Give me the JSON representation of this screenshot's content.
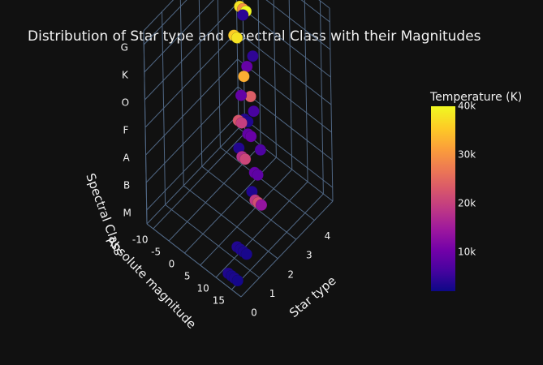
{
  "chart_data": {
    "type": "scatter3d",
    "title": "Distribution of Star type and Spectral Class with their Magnitudes",
    "axes": {
      "x": {
        "label": "Star type",
        "ticks": [
          "0",
          "1",
          "2",
          "3",
          "4"
        ],
        "range": [
          0,
          5
        ]
      },
      "y": {
        "label": "Absolute magnitude",
        "ticks": [
          "-10",
          "-5",
          "0",
          "5",
          "10",
          "15"
        ],
        "range": [
          -12,
          18
        ]
      },
      "z": {
        "label": "Spectral Class",
        "ticks": [
          "M",
          "B",
          "A",
          "F",
          "O",
          "K",
          "G"
        ]
      }
    },
    "colorbar": {
      "title": "Temperature (K)",
      "ticks": [
        "10k",
        "20k",
        "30k",
        "40k"
      ],
      "tick_values": [
        10000,
        20000,
        30000,
        40000
      ],
      "range": [
        2000,
        40000
      ],
      "colors": [
        "#0d0887",
        "#46039f",
        "#7201a8",
        "#9c179e",
        "#bd3786",
        "#d8576b",
        "#ed7953",
        "#fb9f3a",
        "#fdca26",
        "#f0f921"
      ]
    },
    "points": [
      {
        "star_type": 0,
        "abs_mag": 16,
        "spectral_class": "M",
        "temperature": 3000
      },
      {
        "star_type": 0,
        "abs_mag": 15,
        "spectral_class": "M",
        "temperature": 2800
      },
      {
        "star_type": 0,
        "abs_mag": 14,
        "spectral_class": "M",
        "temperature": 3300
      },
      {
        "star_type": 0,
        "abs_mag": 17,
        "spectral_class": "M",
        "temperature": 2600
      },
      {
        "star_type": 1,
        "abs_mag": 12,
        "spectral_class": "M",
        "temperature": 3200
      },
      {
        "star_type": 1,
        "abs_mag": 11,
        "spectral_class": "M",
        "temperature": 3500
      },
      {
        "star_type": 1,
        "abs_mag": 13,
        "spectral_class": "M",
        "temperature": 3100
      },
      {
        "star_type": 1,
        "abs_mag": 14,
        "spectral_class": "M",
        "temperature": 2900
      },
      {
        "star_type": 2,
        "abs_mag": 12,
        "spectral_class": "B",
        "temperature": 22000
      },
      {
        "star_type": 2,
        "abs_mag": 11,
        "spectral_class": "B",
        "temperature": 19000
      },
      {
        "star_type": 2,
        "abs_mag": 13,
        "spectral_class": "B",
        "temperature": 14000
      },
      {
        "star_type": 2,
        "abs_mag": 11,
        "spectral_class": "A",
        "temperature": 9000
      },
      {
        "star_type": 2,
        "abs_mag": 12,
        "spectral_class": "A",
        "temperature": 8500
      },
      {
        "star_type": 2,
        "abs_mag": 13,
        "spectral_class": "F",
        "temperature": 7000
      },
      {
        "star_type": 3,
        "abs_mag": 2,
        "spectral_class": "B",
        "temperature": 21000
      },
      {
        "star_type": 3,
        "abs_mag": 1,
        "spectral_class": "B",
        "temperature": 18000
      },
      {
        "star_type": 3,
        "abs_mag": 4,
        "spectral_class": "A",
        "temperature": 9500
      },
      {
        "star_type": 3,
        "abs_mag": 3,
        "spectral_class": "A",
        "temperature": 8800
      },
      {
        "star_type": 3,
        "abs_mag": 5,
        "spectral_class": "F",
        "temperature": 6500
      },
      {
        "star_type": 3,
        "abs_mag": 2,
        "spectral_class": "O",
        "temperature": 33000
      },
      {
        "star_type": 3,
        "abs_mag": 4,
        "spectral_class": "M",
        "temperature": 3500
      },
      {
        "star_type": 3,
        "abs_mag": 5,
        "spectral_class": "K",
        "temperature": 4500
      },
      {
        "star_type": 4,
        "abs_mag": -6,
        "spectral_class": "B",
        "temperature": 23000
      },
      {
        "star_type": 4,
        "abs_mag": -5,
        "spectral_class": "B",
        "temperature": 20000
      },
      {
        "star_type": 4,
        "abs_mag": -7,
        "spectral_class": "O",
        "temperature": 36000
      },
      {
        "star_type": 4,
        "abs_mag": -6,
        "spectral_class": "O",
        "temperature": 38000
      },
      {
        "star_type": 4,
        "abs_mag": -5,
        "spectral_class": "A",
        "temperature": 9000
      },
      {
        "star_type": 4,
        "abs_mag": -6,
        "spectral_class": "M",
        "temperature": 3600
      },
      {
        "star_type": 4,
        "abs_mag": -4,
        "spectral_class": "K",
        "temperature": 4200
      },
      {
        "star_type": 4,
        "abs_mag": -5,
        "spectral_class": "G",
        "temperature": 5200
      },
      {
        "star_type": 5,
        "abs_mag": -9,
        "spectral_class": "M",
        "temperature": 3400
      },
      {
        "star_type": 5,
        "abs_mag": -10,
        "spectral_class": "M",
        "temperature": 3700
      },
      {
        "star_type": 5,
        "abs_mag": -8,
        "spectral_class": "B",
        "temperature": 24000
      },
      {
        "star_type": 5,
        "abs_mag": -9,
        "spectral_class": "A",
        "temperature": 9200
      },
      {
        "star_type": 5,
        "abs_mag": -10,
        "spectral_class": "O",
        "temperature": 30000
      },
      {
        "star_type": 5,
        "abs_mag": -11,
        "spectral_class": "O",
        "temperature": 38000
      },
      {
        "star_type": 5,
        "abs_mag": -9,
        "spectral_class": "O",
        "temperature": 40000
      },
      {
        "star_type": 5,
        "abs_mag": -10,
        "spectral_class": "K",
        "temperature": 4000
      },
      {
        "star_type": 5,
        "abs_mag": -9,
        "spectral_class": "G",
        "temperature": 3900
      }
    ]
  }
}
